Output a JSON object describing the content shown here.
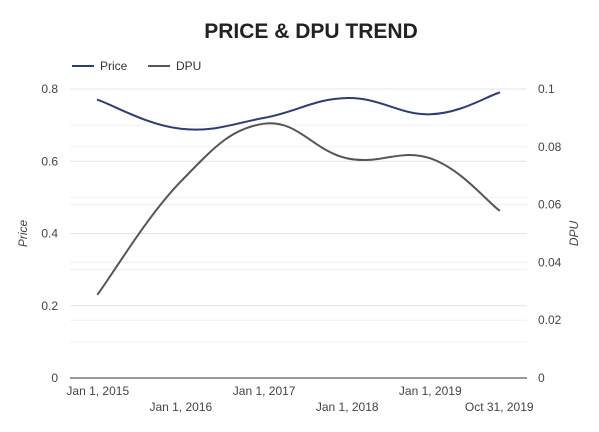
{
  "chart_data": {
    "type": "line",
    "title": "PRICE & DPU TREND",
    "x": [
      "2015-01-01",
      "2016-01-01",
      "2017-01-01",
      "2018-01-01",
      "2019-01-01",
      "2019-10-31"
    ],
    "x_tick_labels": [
      "Jan 1, 2015",
      "Jan 1, 2016",
      "Jan 1, 2017",
      "Jan 1, 2018",
      "Jan 1, 2019",
      "Oct 31, 2019"
    ],
    "x_range": [
      "2014-09-01",
      "2020-03-01"
    ],
    "series": [
      {
        "name": "Price",
        "axis": "left",
        "color": "#2c3e75",
        "values": [
          0.77,
          0.69,
          0.72,
          0.775,
          0.73,
          0.79
        ]
      },
      {
        "name": "DPU",
        "axis": "right",
        "color": "#555555",
        "values": [
          0.029,
          0.068,
          0.088,
          0.076,
          0.076,
          0.058
        ]
      }
    ],
    "ylabel": "Price",
    "ylabel_right": "DPU",
    "ylim": [
      0,
      0.8
    ],
    "ylim_right": [
      0,
      0.1
    ],
    "y_ticks": [
      "0",
      "0.2",
      "0.4",
      "0.6",
      "0.8"
    ],
    "y_ticks_right": [
      "0",
      "0.02",
      "0.04",
      "0.06",
      "0.08",
      "0.1"
    ],
    "grid": true,
    "legend_position": "top-left",
    "smooth": true
  }
}
